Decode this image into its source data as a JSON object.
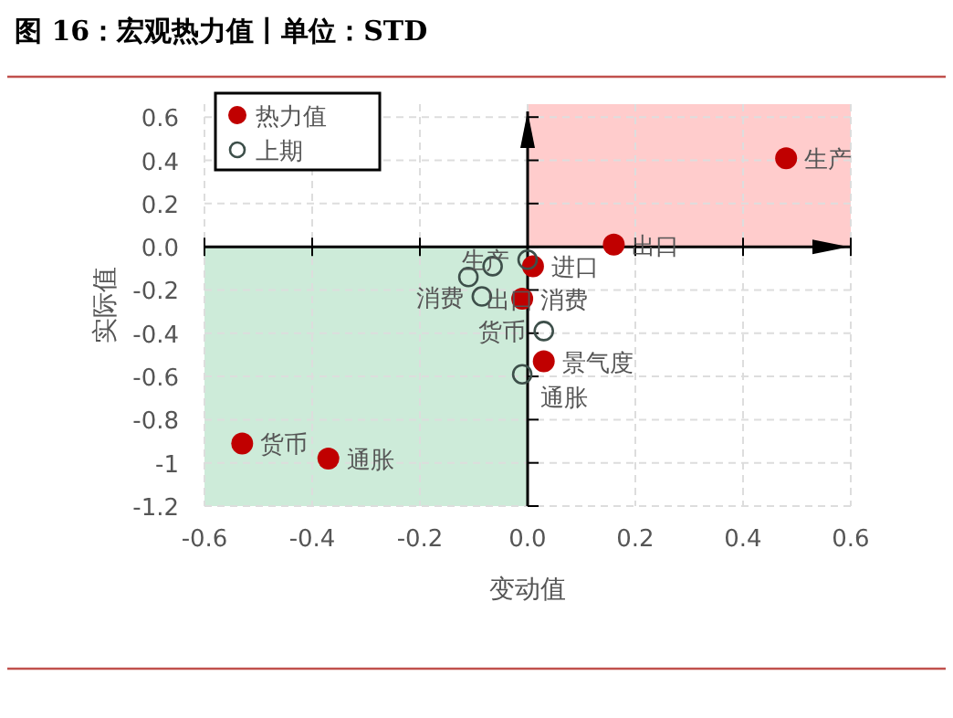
{
  "chart_data": {
    "type": "scatter",
    "title": "图 16：宏观热力值丨单位：STD",
    "xlabel": "变动值",
    "ylabel": "实际值",
    "xlim": [
      -0.6,
      0.6
    ],
    "ylim": [
      -1.2,
      0.66
    ],
    "xticks": [
      -0.6,
      -0.4,
      -0.2,
      {
        "value": 0,
        "label": "0.0"
      },
      0.2,
      0.4,
      0.6
    ],
    "yticks": [
      -1.2,
      -1.0,
      -0.8,
      -0.6,
      -0.4,
      -0.2,
      {
        "value": 0,
        "label": "0.0"
      },
      0.2,
      0.4,
      0.6
    ],
    "grid": true,
    "legend": "top left",
    "marker": "circle",
    "series": [
      {
        "name": "热力值",
        "color": "#c00000",
        "x": [
          0.48,
          0.16,
          0.01,
          -0.01,
          0.03,
          -0.53,
          -0.37
        ],
        "values": [
          0.41,
          0.01,
          -0.09,
          -0.24,
          -0.53,
          -0.91,
          -0.98
        ]
      },
      {
        "name": "上期",
        "color": "#3d4f4a",
        "x": [
          0.0,
          -0.065,
          -0.11,
          -0.085,
          0.03,
          -0.01
        ],
        "values": [
          -0.06,
          -0.09,
          -0.14,
          -0.23,
          -0.39,
          -0.59
        ]
      }
    ],
    "bands": [
      {
        "axis": "x",
        "from": 0,
        "to": 0.6,
        "color": "#ffcccc"
      },
      {
        "axis": "x",
        "from": -0.6,
        "to": 0,
        "color": "#cdebd9"
      }
    ],
    "annotations": [
      {
        "text": "生产",
        "x": 0.48,
        "y": 0.41
      },
      {
        "text": "出口",
        "x": 0.16,
        "y": 0.01
      },
      {
        "text": "进口",
        "x": 0.01,
        "y": -0.09
      },
      {
        "text": "消费",
        "x": -0.01,
        "y": -0.24
      },
      {
        "text": "景气度",
        "x": 0.03,
        "y": -0.53
      },
      {
        "text": "货币",
        "x": -0.53,
        "y": -0.91
      },
      {
        "text": "通胀",
        "x": -0.37,
        "y": -0.98
      },
      {
        "text": "生产",
        "x": 0.0,
        "y": -0.06
      },
      {
        "text": "出口",
        "x": -0.11,
        "y": -0.14
      },
      {
        "text": "消费",
        "x": -0.085,
        "y": -0.23
      },
      {
        "text": "货币",
        "x": 0.03,
        "y": -0.39
      },
      {
        "text": "通胀",
        "x": -0.01,
        "y": -0.59
      }
    ]
  }
}
